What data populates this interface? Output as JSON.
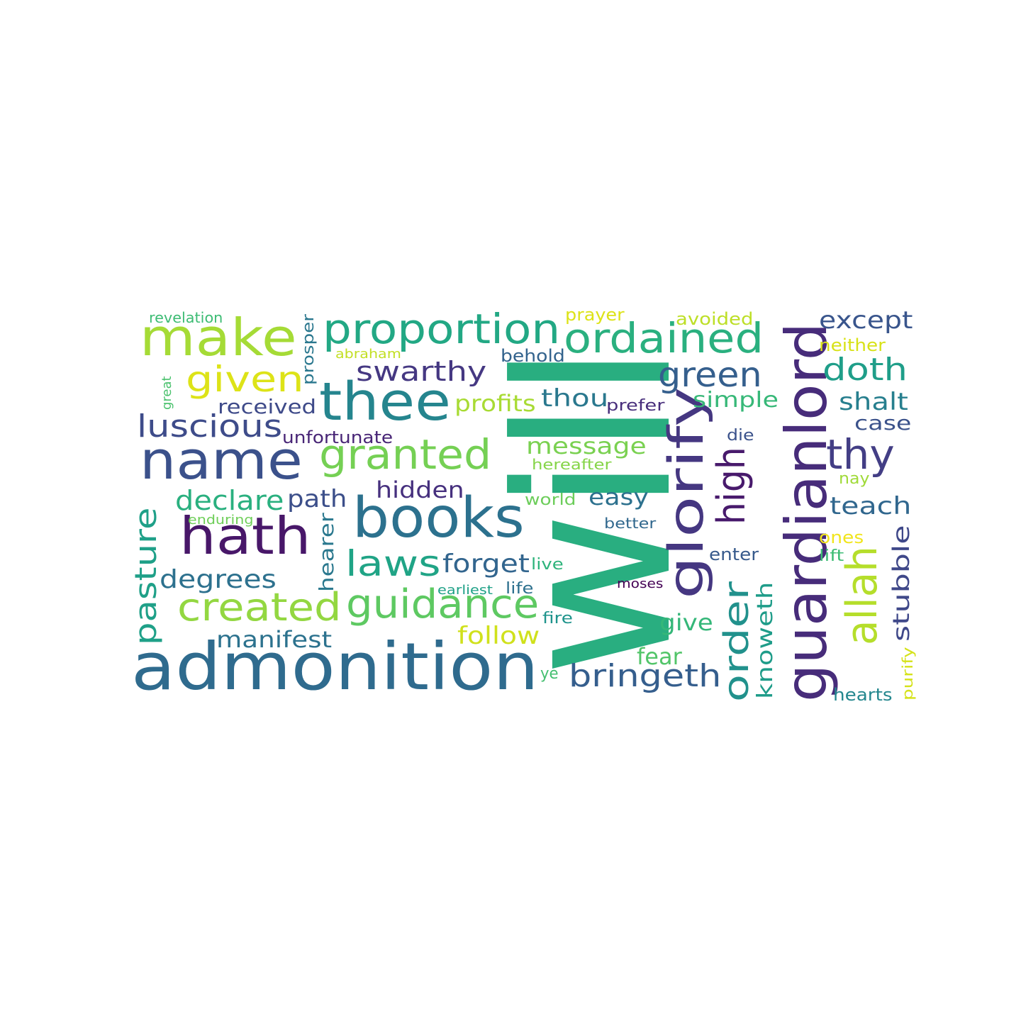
{
  "words": [
    {
      "text": "will",
      "color": "#29ae80"
    },
    {
      "text": "admonition",
      "color": "#2f6b8e"
    },
    {
      "text": "guardianlord",
      "color": "#472c7a"
    },
    {
      "text": "books",
      "color": "#2c718e"
    },
    {
      "text": "glorify",
      "color": "#453781"
    },
    {
      "text": "thee",
      "color": "#25858e"
    },
    {
      "text": "name",
      "color": "#3b518b"
    },
    {
      "text": "hath",
      "color": "#481769"
    },
    {
      "text": "make",
      "color": "#a5db36"
    },
    {
      "text": "proportion",
      "color": "#22a884"
    },
    {
      "text": "ordained",
      "color": "#2ab07f"
    },
    {
      "text": "allah",
      "color": "#b5de2b"
    },
    {
      "text": "granted",
      "color": "#75d054"
    },
    {
      "text": "guidance",
      "color": "#5ec962"
    },
    {
      "text": "created",
      "color": "#93d741"
    },
    {
      "text": "high",
      "color": "#481a6c"
    },
    {
      "text": "order",
      "color": "#21918c"
    },
    {
      "text": "given",
      "color": "#dde318"
    },
    {
      "text": "laws",
      "color": "#20a486"
    },
    {
      "text": "green",
      "color": "#355f8d"
    },
    {
      "text": "thy",
      "color": "#433e85"
    },
    {
      "text": "luscious",
      "color": "#3e4c8a"
    },
    {
      "text": "pasture",
      "color": "#1fa088"
    },
    {
      "text": "bringeth",
      "color": "#355e8d"
    },
    {
      "text": "swarthy",
      "color": "#453882"
    },
    {
      "text": "doth",
      "color": "#1f9e89"
    },
    {
      "text": "except",
      "color": "#39558c"
    },
    {
      "text": "declare",
      "color": "#2ab07f"
    },
    {
      "text": "degrees",
      "color": "#2d718e"
    },
    {
      "text": "forget",
      "color": "#32658e"
    },
    {
      "text": "follow",
      "color": "#d0e11c"
    },
    {
      "text": "manifest",
      "color": "#2c728e"
    },
    {
      "text": "hidden",
      "color": "#46307e"
    },
    {
      "text": "message",
      "color": "#7ad151"
    },
    {
      "text": "thou",
      "color": "#2a788e"
    },
    {
      "text": "profits",
      "color": "#a8db34"
    },
    {
      "text": "path",
      "color": "#3c4f8a"
    },
    {
      "text": "knoweth",
      "color": "#1e9c89"
    },
    {
      "text": "stubble",
      "color": "#3f4889"
    },
    {
      "text": "teach",
      "color": "#31678e"
    },
    {
      "text": "shalt",
      "color": "#277f8e"
    },
    {
      "text": "simple",
      "color": "#37b878"
    },
    {
      "text": "easy",
      "color": "#2d718e"
    },
    {
      "text": "give",
      "color": "#35b779"
    },
    {
      "text": "fear",
      "color": "#52c569"
    },
    {
      "text": "received",
      "color": "#3e4a89"
    },
    {
      "text": "case",
      "color": "#3b528b"
    },
    {
      "text": "hearer",
      "color": "#2a788e"
    },
    {
      "text": "prefer",
      "color": "#472d7b"
    },
    {
      "text": "behold",
      "color": "#33638d"
    },
    {
      "text": "unfortunate",
      "color": "#482576"
    },
    {
      "text": "prosper",
      "color": "#2a778e"
    },
    {
      "text": "enter",
      "color": "#375a8c"
    },
    {
      "text": "die",
      "color": "#3b528b"
    },
    {
      "text": "life",
      "color": "#2d708e"
    },
    {
      "text": "fire",
      "color": "#1f948c"
    },
    {
      "text": "hearts",
      "color": "#24878e"
    },
    {
      "text": "avoided",
      "color": "#bddf26"
    },
    {
      "text": "prayer",
      "color": "#dde318"
    },
    {
      "text": "neither",
      "color": "#d8e219"
    },
    {
      "text": "world",
      "color": "#6ccd5a"
    },
    {
      "text": "revelation",
      "color": "#3dbc74"
    },
    {
      "text": "better",
      "color": "#31688e"
    },
    {
      "text": "ones",
      "color": "#f1e51d"
    },
    {
      "text": "live",
      "color": "#2fb47c"
    },
    {
      "text": "moses",
      "color": "#440154"
    },
    {
      "text": "nay",
      "color": "#a0da39"
    },
    {
      "text": "lift",
      "color": "#3dbc74"
    },
    {
      "text": "purify",
      "color": "#d5e21a"
    },
    {
      "text": "ye",
      "color": "#44bf70"
    },
    {
      "text": "hereafter",
      "color": "#86d549"
    },
    {
      "text": "earliest",
      "color": "#1fa187"
    },
    {
      "text": "abraham",
      "color": "#c2df23"
    },
    {
      "text": "enduring",
      "color": "#6ece58"
    },
    {
      "text": "great",
      "color": "#4ac16d"
    }
  ]
}
